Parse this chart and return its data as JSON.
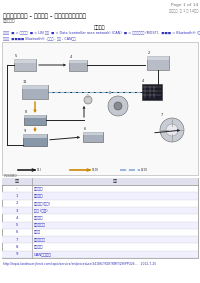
{
  "page_header_right": "Page 1 of 14",
  "subtitle_right": "小文档：  从 1 小 14档案",
  "title": "信息和娱乐系统 - 移动电话 - 系统操作和部件说明",
  "subtitle2": "发布时间：",
  "section_label": "部件图解",
  "legend": "图注：  ■ = 网络总线  ■ = LIN 总线  ■ = Data (controller area network) (CAN)  ■ = 蓝牙无线技术 (MOST);  ■■■ = Bluetooth® (蓝牙）",
  "note": "注意：  ■■■■ Bluetooth® -此文档 - 仅仅 - CAN总线",
  "table_header_col1": "组件",
  "table_header_col2": "说明",
  "table_rows": [
    [
      "–",
      "触点天线"
    ],
    [
      "1",
      "移动电话"
    ],
    [
      "2",
      "蓝牙模块(蓝牙)"
    ],
    [
      "3",
      "电话 (蓝牙)"
    ],
    [
      "4",
      "触控屏幕"
    ],
    [
      "5",
      "音量控制器"
    ],
    [
      "6",
      "扬声器"
    ],
    [
      "7",
      "方向盘控制"
    ],
    [
      "8",
      "信息显示"
    ],
    [
      "9",
      "CAN总线节点"
    ]
  ],
  "footer_url": "http://topix.landrover.jlrext.com/topix/service/en/procedure/341867/XDY/XM/Y/ZH/PPU26...   2012-7-25",
  "bg_color": "#ffffff",
  "text_color_dark": "#333333",
  "text_color_blue": "#3333bb",
  "text_color_gray": "#666666",
  "table_header_bg": "#e0e0ee",
  "table_alt_bg": "#f0f0ff",
  "diagram_border": "#aaaaaa",
  "legend_box_colors": [
    "#333333",
    "#c8a020",
    "#ff8800",
    "#0088cc",
    "#cc44cc"
  ],
  "arrow_black": "#222222",
  "arrow_orange": "#cc8800",
  "arrow_blue": "#88aadd"
}
